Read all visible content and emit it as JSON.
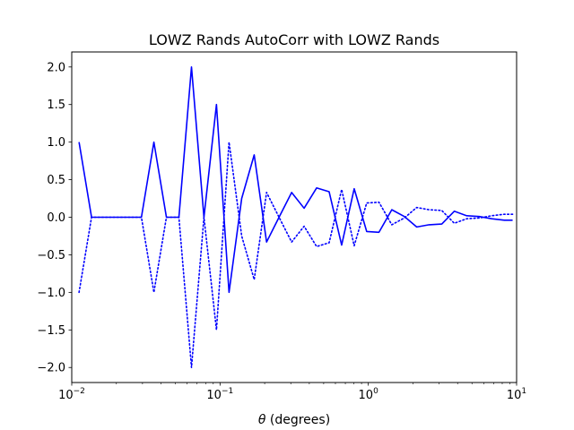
{
  "chart_data": {
    "type": "line",
    "title": "LOWZ Rands AutoCorr with LOWZ Rands",
    "xlabel_symbol": "θ",
    "xlabel_text": " (degrees)",
    "ylabel": "",
    "xscale": "log",
    "xlim": [
      0.01,
      10
    ],
    "ylim": [
      -2.2,
      2.2
    ],
    "grid": false,
    "color": "#0000ff",
    "x_ticks": [
      {
        "value": 0.01,
        "base": "10",
        "exp": "−2"
      },
      {
        "value": 0.1,
        "base": "10",
        "exp": "−1"
      },
      {
        "value": 1,
        "base": "10",
        "exp": "0"
      },
      {
        "value": 10,
        "base": "10",
        "exp": "1"
      }
    ],
    "y_ticks": [
      {
        "value": 2.0,
        "label": "2.0"
      },
      {
        "value": 1.5,
        "label": "1.5"
      },
      {
        "value": 1.0,
        "label": "1.0"
      },
      {
        "value": 0.5,
        "label": "0.5"
      },
      {
        "value": 0.0,
        "label": "0.0"
      },
      {
        "value": -0.5,
        "label": "−0.5"
      },
      {
        "value": -1.0,
        "label": "−1.0"
      },
      {
        "value": -1.5,
        "label": "−1.5"
      },
      {
        "value": -2.0,
        "label": "−2.0"
      }
    ],
    "x": [
      0.0112,
      0.0136,
      0.0165,
      0.02,
      0.0243,
      0.0295,
      0.0358,
      0.0435,
      0.0528,
      0.0642,
      0.0779,
      0.0946,
      0.115,
      0.14,
      0.17,
      0.206,
      0.25,
      0.304,
      0.369,
      0.448,
      0.544,
      0.661,
      0.803,
      0.975,
      1.18,
      1.44,
      1.75,
      2.12,
      2.57,
      3.13,
      3.8,
      4.61,
      5.6,
      6.8,
      8.26,
      9.4
    ],
    "series": [
      {
        "style": "solid",
        "values": [
          1.0,
          0.0,
          0.0,
          0.0,
          0.0,
          0.0,
          1.0,
          0.0,
          0.0,
          2.0,
          0.0,
          1.5,
          -1.0,
          0.25,
          0.83,
          -0.33,
          0.0,
          0.33,
          0.12,
          0.39,
          0.34,
          -0.37,
          0.38,
          -0.19,
          -0.2,
          0.1,
          0.01,
          -0.13,
          -0.1,
          -0.09,
          0.08,
          0.02,
          0.01,
          -0.02,
          -0.04,
          -0.04
        ]
      },
      {
        "style": "dotted",
        "values": [
          -1.0,
          0.0,
          0.0,
          0.0,
          0.0,
          0.0,
          -1.0,
          0.0,
          0.0,
          -2.0,
          0.0,
          -1.5,
          1.0,
          -0.25,
          -0.83,
          0.33,
          0.0,
          -0.33,
          -0.12,
          -0.39,
          -0.34,
          0.37,
          -0.38,
          0.19,
          0.2,
          -0.1,
          -0.01,
          0.13,
          0.1,
          0.09,
          -0.08,
          -0.02,
          -0.01,
          0.02,
          0.04,
          0.04
        ]
      }
    ]
  }
}
